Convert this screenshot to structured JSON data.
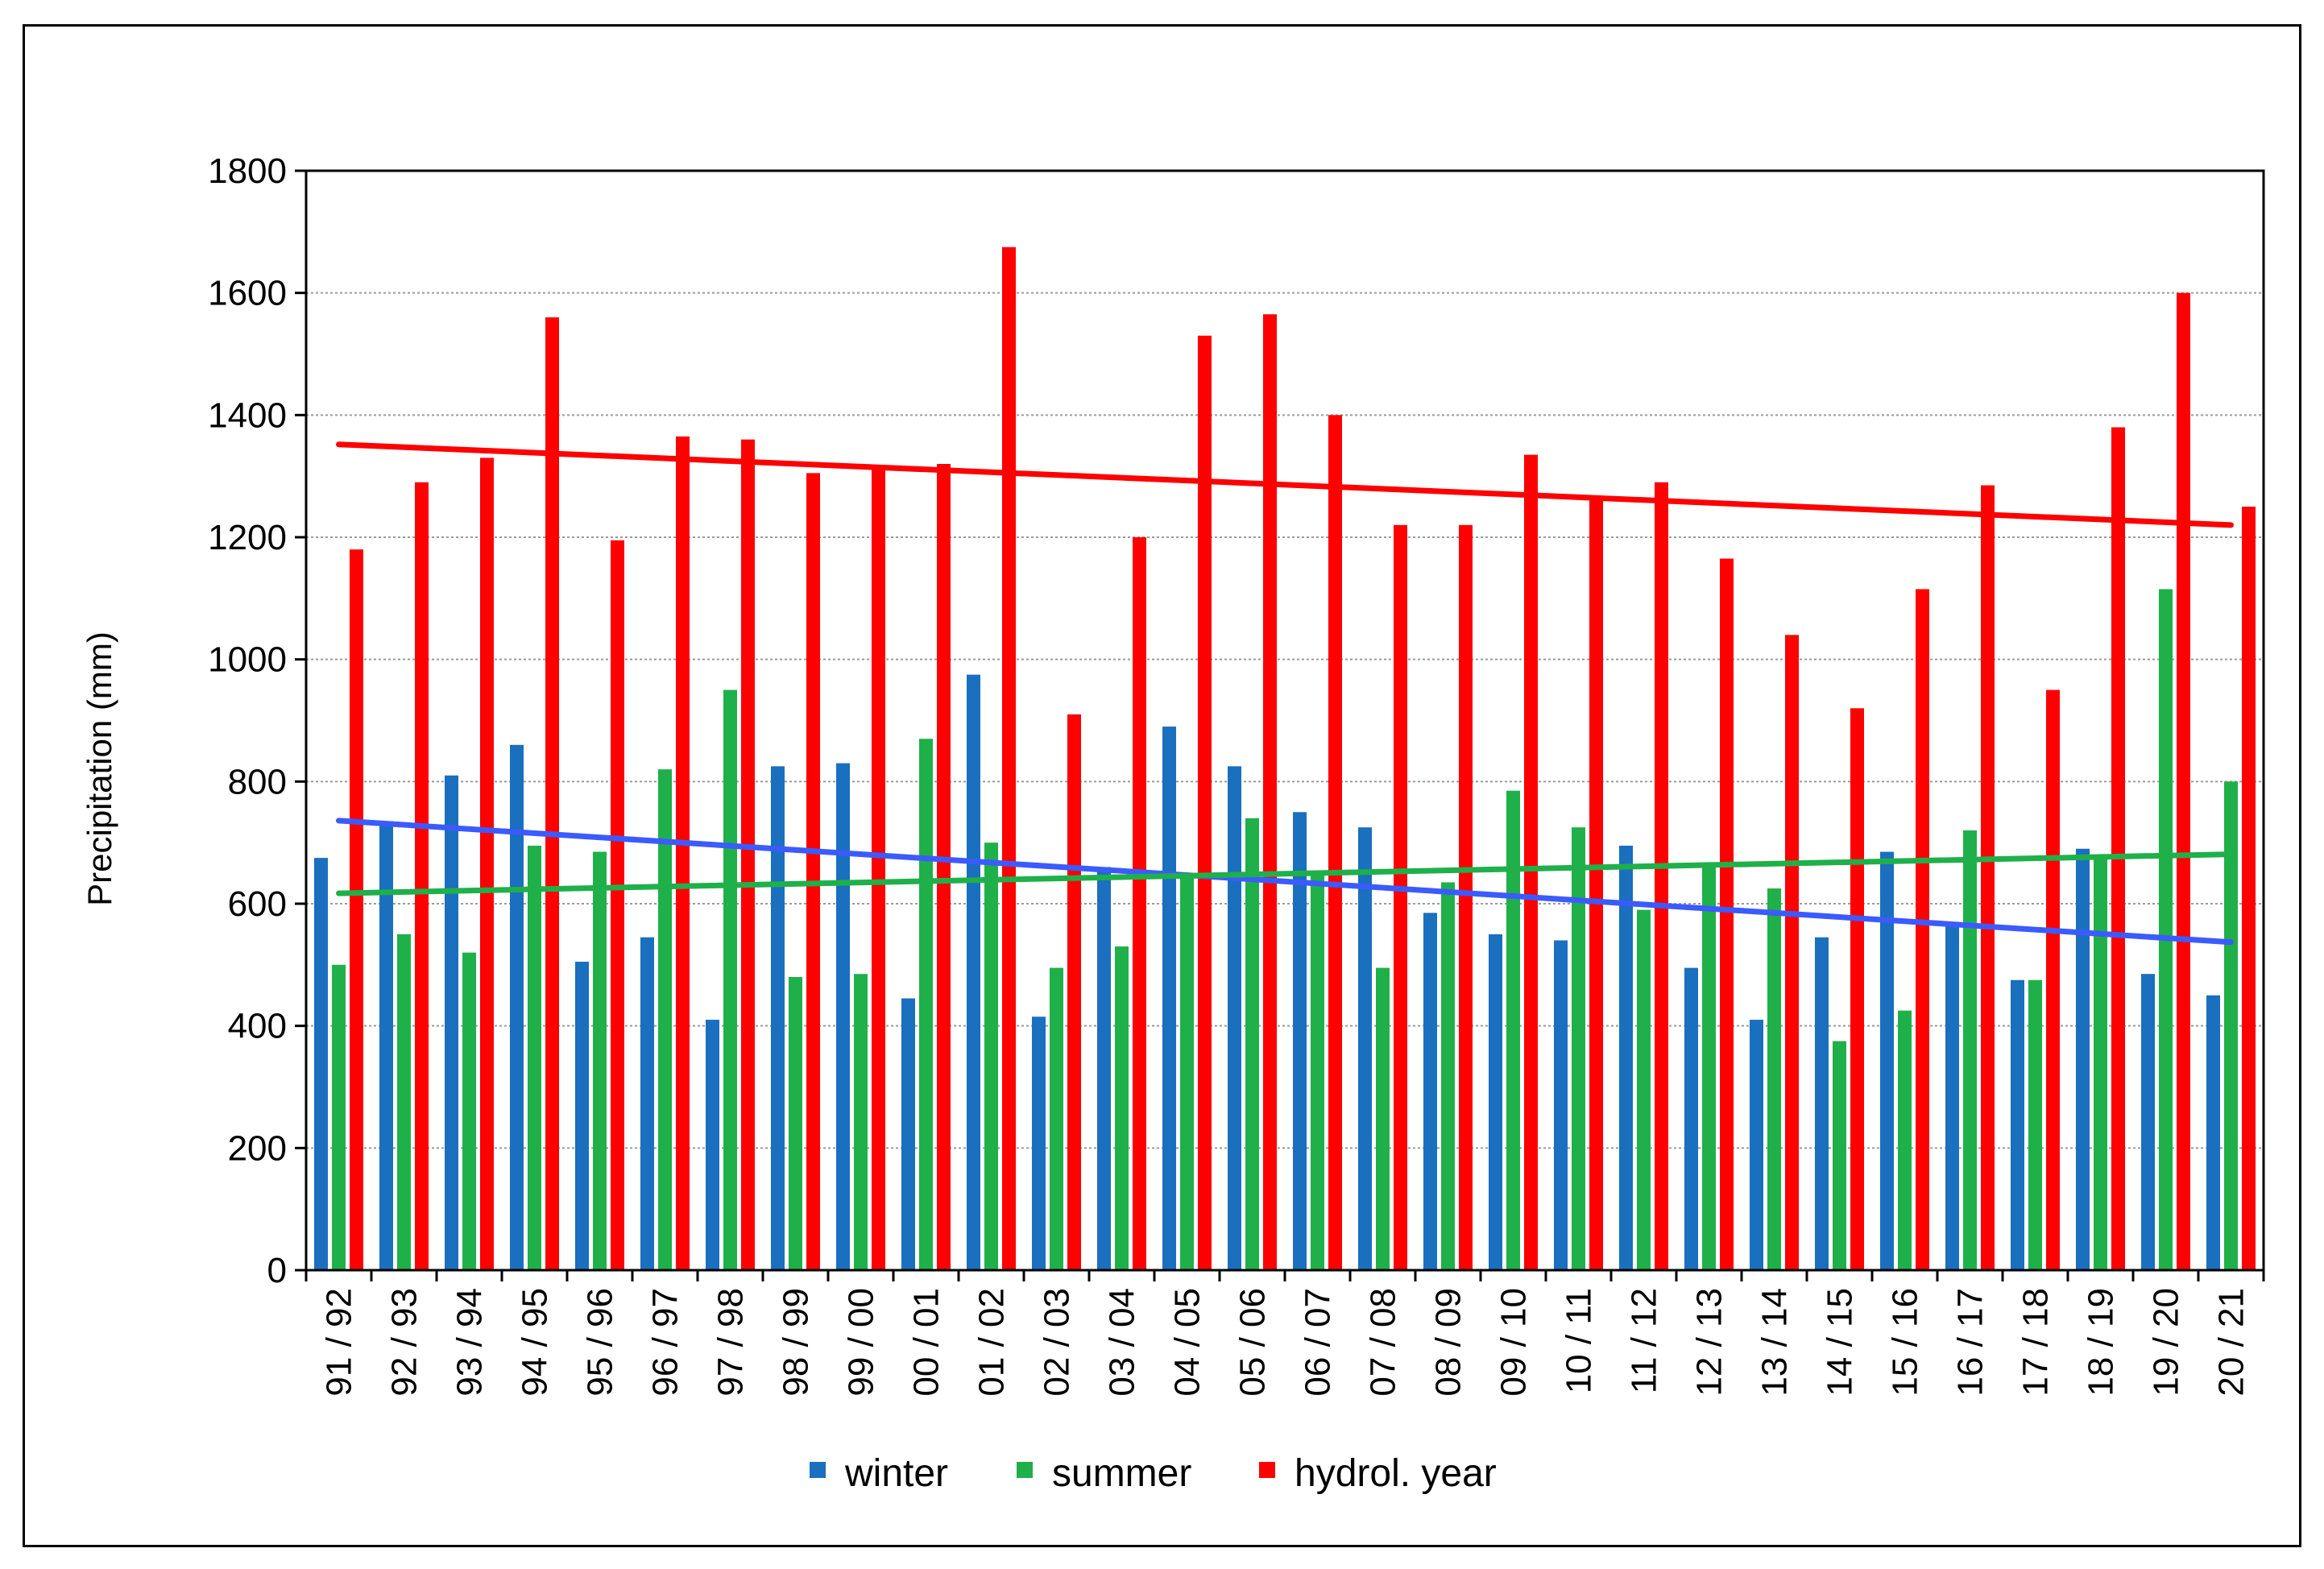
{
  "chart_data": {
    "type": "bar",
    "title": "",
    "xlabel": "",
    "ylabel": "Precipitation (mm)",
    "ylim": [
      0,
      1800
    ],
    "yticks": [
      0,
      200,
      400,
      600,
      800,
      1000,
      1200,
      1400,
      1600,
      1800
    ],
    "grid": "horizontal dashed",
    "legend_position": "bottom",
    "categories": [
      "91 / 92",
      "92 / 93",
      "93 / 94",
      "94 / 95",
      "95 / 96",
      "96 / 97",
      "97 / 98",
      "98 / 99",
      "99 / 00",
      "00 / 01",
      "01 / 02",
      "02 / 03",
      "03 / 04",
      "04 / 05",
      "05 / 06",
      "06 / 07",
      "07 / 08",
      "08 / 09",
      "09 / 10",
      "10 / 11",
      "11 / 12",
      "12 / 13",
      "13 / 14",
      "14 / 15",
      "15 / 16",
      "16 / 17",
      "17 / 18",
      "18 / 19",
      "19 / 20",
      "20 / 21"
    ],
    "series": [
      {
        "name": "winter",
        "color": "#1a6fbf",
        "values": [
          675,
          735,
          810,
          860,
          505,
          545,
          410,
          825,
          830,
          445,
          975,
          415,
          660,
          890,
          825,
          750,
          725,
          585,
          550,
          540,
          695,
          495,
          410,
          545,
          685,
          565,
          475,
          690,
          485,
          450
        ]
      },
      {
        "name": "summer",
        "color": "#1fb04a",
        "values": [
          500,
          550,
          520,
          695,
          685,
          820,
          950,
          480,
          485,
          870,
          700,
          495,
          530,
          650,
          740,
          650,
          495,
          635,
          785,
          725,
          590,
          665,
          625,
          375,
          425,
          720,
          475,
          680,
          1115,
          800
        ]
      },
      {
        "name": "hydrol. year",
        "color": "#ff0000",
        "values": [
          1180,
          1290,
          1330,
          1560,
          1195,
          1365,
          1360,
          1305,
          1315,
          1320,
          1675,
          910,
          1200,
          1530,
          1565,
          1400,
          1220,
          1220,
          1335,
          1265,
          1290,
          1165,
          1040,
          920,
          1115,
          1285,
          950,
          1380,
          1600,
          1250
        ]
      }
    ],
    "trendlines": [
      {
        "series": "hydrol. year",
        "color": "#ff0000",
        "start": 1352,
        "end": 1220
      },
      {
        "series": "winter",
        "color": "#3b5bff",
        "start": 736,
        "end": 537
      },
      {
        "series": "summer",
        "color": "#1fb04a",
        "start": 617,
        "end": 681
      }
    ]
  }
}
